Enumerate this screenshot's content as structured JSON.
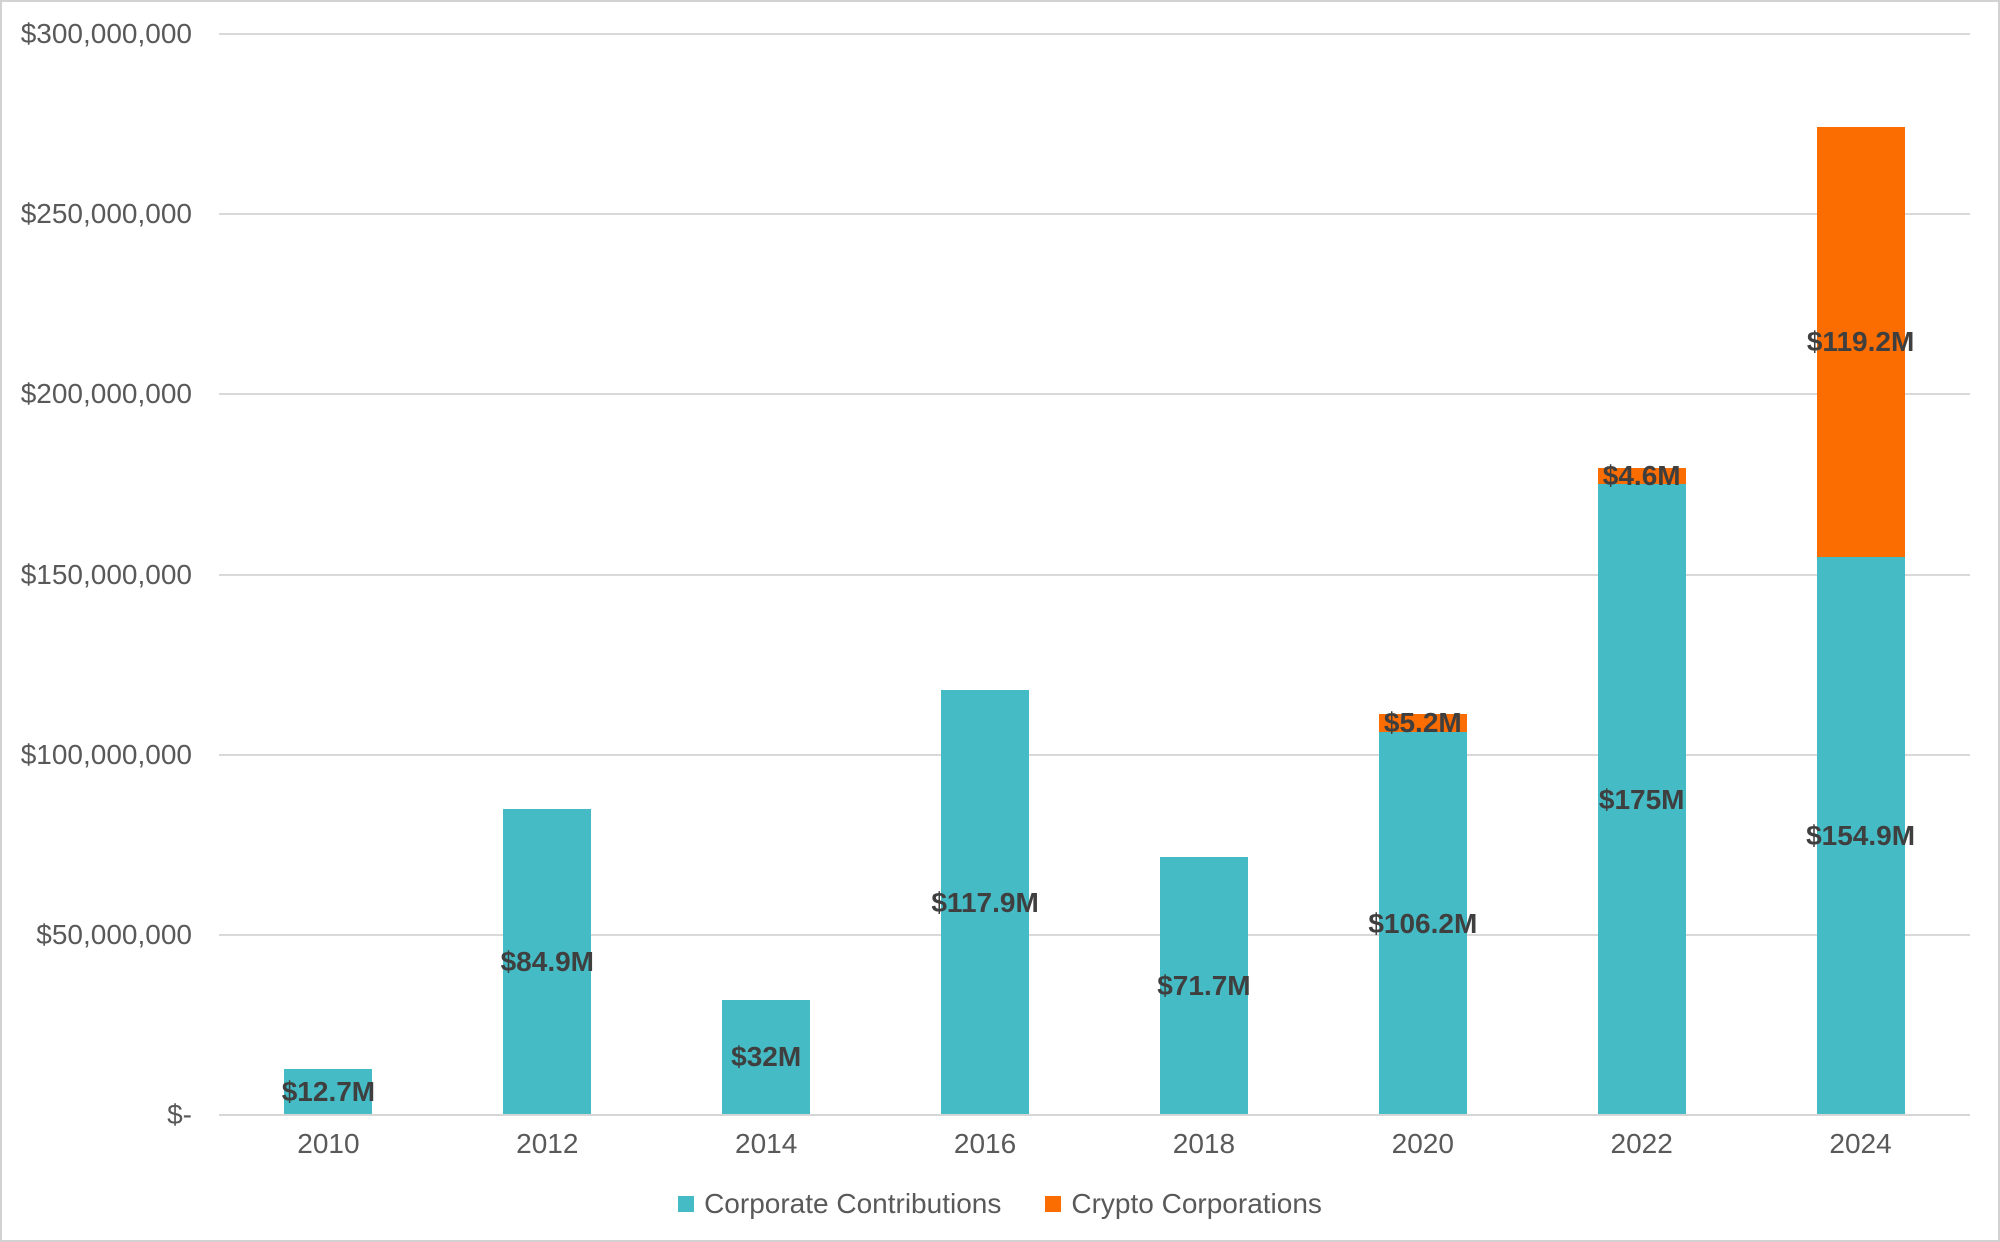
{
  "colors": {
    "corporate": "#45BBC5",
    "crypto": "#FB6D00",
    "gridline": "#D9D9D9",
    "axis_line": "#D6D6D6",
    "tick_text": "#595959",
    "data_label": "#3F3F3F",
    "page_border": "#D2D2D2"
  },
  "chart_data": {
    "type": "bar",
    "stacked": true,
    "title": "",
    "xlabel": "",
    "ylabel": "",
    "categories": [
      "2010",
      "2012",
      "2014",
      "2016",
      "2018",
      "2020",
      "2022",
      "2024"
    ],
    "series": [
      {
        "name": "Corporate Contributions",
        "color_key": "corporate",
        "values": [
          12700000,
          84900000,
          32000000,
          117900000,
          71700000,
          106200000,
          175000000,
          154900000
        ],
        "data_labels": [
          "$12.7M",
          "$84.9M",
          "$32M",
          "$117.9M",
          "$71.7M",
          "$106.2M",
          "$175M",
          "$154.9M"
        ]
      },
      {
        "name": "Crypto Corporations",
        "color_key": "crypto",
        "values": [
          0,
          0,
          0,
          0,
          0,
          5200000,
          4600000,
          119200000
        ],
        "data_labels": [
          "",
          "",
          "",
          "",
          "",
          "$5.2M",
          "$4.6M",
          "$119.2M"
        ]
      }
    ],
    "ylim": [
      0,
      300000000
    ],
    "ytick_step": 50000000,
    "ytick_labels": [
      "$-",
      "$50,000,000",
      "$100,000,000",
      "$150,000,000",
      "$200,000,000",
      "$250,000,000",
      "$300,000,000"
    ],
    "grid": true,
    "legend_position": "bottom"
  },
  "legend": {
    "items": [
      {
        "label": "Corporate Contributions",
        "color_key": "corporate"
      },
      {
        "label": "Crypto Corporations",
        "color_key": "crypto"
      }
    ]
  }
}
